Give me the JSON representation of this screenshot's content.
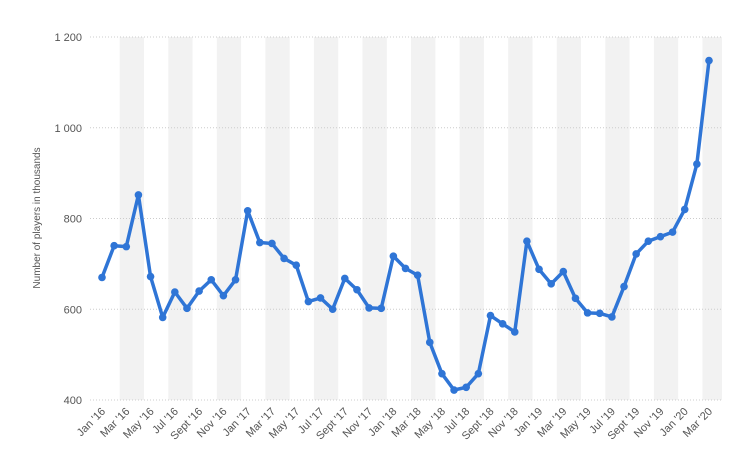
{
  "chart_data": {
    "type": "line",
    "title": "",
    "xlabel": "",
    "ylabel": "Number of players in thousands",
    "ylim": [
      400,
      1200
    ],
    "yticks": [
      400,
      600,
      800,
      1000,
      1200
    ],
    "ytick_labels": [
      "400",
      "600",
      "800",
      "1 000",
      "1 200"
    ],
    "grid": true,
    "legend": "none",
    "colors": {
      "line": "#2f75d6",
      "grid": "#cccccc",
      "band": "#f2f2f2"
    },
    "x": [
      "Jan '16",
      "Feb '16",
      "Mar '16",
      "Apr '16",
      "May '16",
      "Jun '16",
      "Jul '16",
      "Aug '16",
      "Sept '16",
      "Oct '16",
      "Nov '16",
      "Dec '16",
      "Jan '17",
      "Feb '17",
      "Mar '17",
      "Apr '17",
      "May '17",
      "Jun '17",
      "Jul '17",
      "Aug '17",
      "Sept '17",
      "Oct '17",
      "Nov '17",
      "Dec '17",
      "Jan '18",
      "Feb '18",
      "Mar '18",
      "Apr '18",
      "May '18",
      "Jun '18",
      "Jul '18",
      "Aug '18",
      "Sept '18",
      "Oct '18",
      "Nov '18",
      "Dec '18",
      "Jan '19",
      "Feb '19",
      "Mar '19",
      "Apr '19",
      "May '19",
      "Jun '19",
      "Jul '19",
      "Aug '19",
      "Sept '19",
      "Oct '19",
      "Nov '19",
      "Dec '19",
      "Jan '20",
      "Feb '20",
      "Mar '20"
    ],
    "x_tick_labels": [
      "Jan '16",
      "Mar '16",
      "May '16",
      "Jul '16",
      "Sept '16",
      "Nov '16",
      "Jan '17",
      "Mar '17",
      "May '17",
      "Jul '17",
      "Sept '17",
      "Nov '17",
      "Jan '18",
      "Mar '18",
      "May '18",
      "Jul '18",
      "Sept '18",
      "Nov '18",
      "Jan '19",
      "Mar '19",
      "May '19",
      "Jul '19",
      "Sept '19",
      "Nov '19",
      "Jan '20",
      "Mar '20"
    ],
    "series": [
      {
        "values": [
          670,
          740,
          738,
          852,
          672,
          582,
          638,
          602,
          640,
          665,
          630,
          665,
          817,
          747,
          745,
          712,
          697,
          617,
          625,
          600,
          668,
          643,
          603,
          602,
          717,
          690,
          675,
          527,
          458,
          422,
          428,
          458,
          586,
          568,
          550,
          750,
          688,
          656,
          683,
          624,
          592,
          591,
          583,
          650,
          722,
          750,
          760,
          770,
          820,
          920,
          1148
        ]
      }
    ]
  }
}
